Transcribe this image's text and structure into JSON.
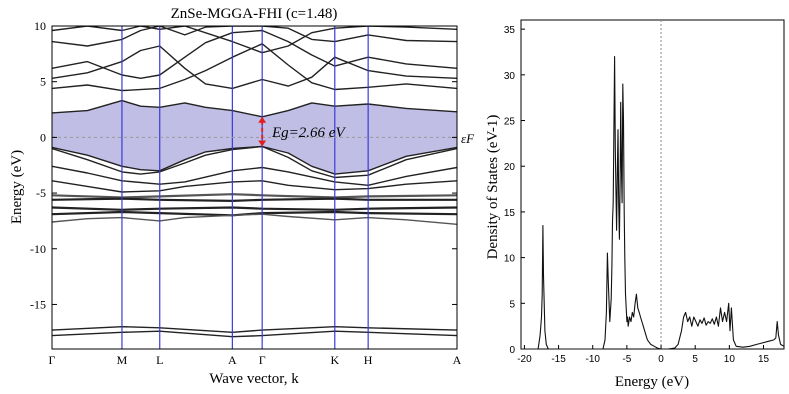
{
  "chart_data": [
    {
      "type": "line",
      "title": "ZnSe-MGGA-FHI (c=1.48)",
      "xlabel": "Wave vector, k",
      "ylabel": "Energy (eV)",
      "ylim": [
        -19,
        10
      ],
      "yticks": [
        "10",
        "5",
        "0",
        "-5",
        "-10",
        "-15"
      ],
      "kpoints": [
        "Γ",
        "M",
        "L",
        "A",
        "Γ",
        "K",
        "H",
        "A"
      ],
      "kpoint_positions": [
        0,
        0.237,
        0.365,
        0.611,
        0.712,
        0.958,
        1.071,
        1.372
      ],
      "gap_label": "Eg=2.66 eV",
      "fermi_label": "εF",
      "band_gap_eV": 2.66,
      "conduction_band_min": [
        [
          0,
          2.2
        ],
        [
          0.12,
          2.4
        ],
        [
          0.237,
          3.3
        ],
        [
          0.3,
          2.8
        ],
        [
          0.365,
          2.7
        ],
        [
          0.45,
          3.1
        ],
        [
          0.52,
          2.7
        ],
        [
          0.611,
          2.4
        ],
        [
          0.712,
          1.85
        ],
        [
          0.8,
          2.4
        ],
        [
          0.88,
          3.1
        ],
        [
          0.958,
          2.8
        ],
        [
          1.071,
          3.0
        ],
        [
          1.2,
          2.6
        ],
        [
          1.372,
          2.3
        ]
      ],
      "valence_band_max": [
        [
          0,
          -0.9
        ],
        [
          0.12,
          -1.6
        ],
        [
          0.237,
          -2.6
        ],
        [
          0.3,
          -2.9
        ],
        [
          0.365,
          -3.0
        ],
        [
          0.45,
          -2.0
        ],
        [
          0.52,
          -1.3
        ],
        [
          0.611,
          -1.0
        ],
        [
          0.712,
          -0.82
        ],
        [
          0.8,
          -1.4
        ],
        [
          0.88,
          -2.6
        ],
        [
          0.958,
          -3.3
        ],
        [
          1.071,
          -3.0
        ],
        [
          1.2,
          -1.7
        ],
        [
          1.372,
          -0.9
        ]
      ],
      "bands": [
        [
          [
            0,
            -0.9
          ],
          [
            0.12,
            -1.6
          ],
          [
            0.237,
            -2.6
          ],
          [
            0.3,
            -2.9
          ],
          [
            0.365,
            -3.0
          ],
          [
            0.45,
            -2.0
          ],
          [
            0.52,
            -1.3
          ],
          [
            0.611,
            -1.0
          ],
          [
            0.712,
            -0.82
          ],
          [
            0.8,
            -1.4
          ],
          [
            0.88,
            -2.6
          ],
          [
            0.958,
            -3.3
          ],
          [
            1.071,
            -3.0
          ],
          [
            1.2,
            -1.7
          ],
          [
            1.372,
            -0.9
          ]
        ],
        [
          [
            0,
            -1.0
          ],
          [
            0.12,
            -2.0
          ],
          [
            0.237,
            -3.1
          ],
          [
            0.3,
            -3.3
          ],
          [
            0.365,
            -3.1
          ],
          [
            0.45,
            -2.3
          ],
          [
            0.52,
            -1.6
          ],
          [
            0.611,
            -1.1
          ],
          [
            0.712,
            -0.82
          ],
          [
            0.8,
            -1.8
          ],
          [
            0.88,
            -3.0
          ],
          [
            0.958,
            -3.6
          ],
          [
            1.071,
            -3.4
          ],
          [
            1.2,
            -2.0
          ],
          [
            1.372,
            -1.0
          ]
        ],
        [
          [
            0,
            -2.6
          ],
          [
            0.12,
            -3.2
          ],
          [
            0.237,
            -3.9
          ],
          [
            0.365,
            -4.2
          ],
          [
            0.45,
            -4.0
          ],
          [
            0.611,
            -3.0
          ],
          [
            0.712,
            -2.7
          ],
          [
            0.8,
            -3.1
          ],
          [
            0.958,
            -4.0
          ],
          [
            1.071,
            -4.3
          ],
          [
            1.2,
            -3.5
          ],
          [
            1.372,
            -2.7
          ]
        ],
        [
          [
            0,
            -3.9
          ],
          [
            0.12,
            -4.4
          ],
          [
            0.237,
            -4.9
          ],
          [
            0.365,
            -4.8
          ],
          [
            0.45,
            -4.4
          ],
          [
            0.611,
            -4.0
          ],
          [
            0.712,
            -3.9
          ],
          [
            0.8,
            -4.3
          ],
          [
            0.958,
            -4.7
          ],
          [
            1.071,
            -4.6
          ],
          [
            1.2,
            -4.2
          ],
          [
            1.372,
            -3.9
          ]
        ],
        [
          [
            0,
            -5.2
          ],
          [
            0.237,
            -5.4
          ],
          [
            0.365,
            -5.3
          ],
          [
            0.611,
            -5.1
          ],
          [
            0.712,
            -5.2
          ],
          [
            0.958,
            -5.4
          ],
          [
            1.071,
            -5.3
          ],
          [
            1.372,
            -5.2
          ]
        ],
        [
          [
            0,
            -5.6
          ],
          [
            0.237,
            -5.5
          ],
          [
            0.365,
            -5.6
          ],
          [
            0.611,
            -5.7
          ],
          [
            0.712,
            -5.6
          ],
          [
            0.958,
            -5.5
          ],
          [
            1.071,
            -5.6
          ],
          [
            1.372,
            -5.6
          ]
        ],
        [
          [
            0,
            -6.3
          ],
          [
            0.237,
            -6.5
          ],
          [
            0.365,
            -6.4
          ],
          [
            0.611,
            -6.3
          ],
          [
            0.712,
            -6.4
          ],
          [
            0.958,
            -6.5
          ],
          [
            1.071,
            -6.4
          ],
          [
            1.372,
            -6.3
          ]
        ],
        [
          [
            0,
            -6.9
          ],
          [
            0.237,
            -6.7
          ],
          [
            0.365,
            -6.8
          ],
          [
            0.611,
            -7.0
          ],
          [
            0.712,
            -6.8
          ],
          [
            0.958,
            -6.7
          ],
          [
            1.071,
            -6.8
          ],
          [
            1.372,
            -6.9
          ]
        ],
        [
          [
            0,
            -7.6
          ],
          [
            0.12,
            -7.3
          ],
          [
            0.237,
            -7.2
          ],
          [
            0.365,
            -7.5
          ],
          [
            0.45,
            -7.2
          ],
          [
            0.611,
            -7.0
          ],
          [
            0.712,
            -6.9
          ],
          [
            0.8,
            -7.1
          ],
          [
            0.958,
            -7.4
          ],
          [
            1.071,
            -7.2
          ],
          [
            1.2,
            -7.4
          ],
          [
            1.372,
            -7.8
          ]
        ],
        [
          [
            0,
            -17.3
          ],
          [
            0.237,
            -17.0
          ],
          [
            0.365,
            -17.1
          ],
          [
            0.611,
            -17.5
          ],
          [
            0.712,
            -17.3
          ],
          [
            0.958,
            -17.0
          ],
          [
            1.071,
            -17.1
          ],
          [
            1.372,
            -17.3
          ]
        ],
        [
          [
            0,
            -17.8
          ],
          [
            0.237,
            -17.5
          ],
          [
            0.365,
            -17.4
          ],
          [
            0.611,
            -17.9
          ],
          [
            0.712,
            -17.8
          ],
          [
            0.958,
            -17.4
          ],
          [
            1.071,
            -17.5
          ],
          [
            1.372,
            -17.8
          ]
        ],
        [
          [
            0,
            2.2
          ],
          [
            0.12,
            2.4
          ],
          [
            0.237,
            3.3
          ],
          [
            0.3,
            2.8
          ],
          [
            0.365,
            2.7
          ],
          [
            0.45,
            3.1
          ],
          [
            0.52,
            2.7
          ],
          [
            0.611,
            2.4
          ],
          [
            0.712,
            1.85
          ],
          [
            0.8,
            2.4
          ],
          [
            0.88,
            3.1
          ],
          [
            0.958,
            2.8
          ],
          [
            1.071,
            3.0
          ],
          [
            1.2,
            2.6
          ],
          [
            1.372,
            2.3
          ]
        ],
        [
          [
            0,
            4.4
          ],
          [
            0.12,
            4.7
          ],
          [
            0.237,
            4.2
          ],
          [
            0.365,
            4.4
          ],
          [
            0.45,
            5.2
          ],
          [
            0.52,
            6.0
          ],
          [
            0.611,
            7.2
          ],
          [
            0.712,
            8.4
          ],
          [
            0.8,
            6.5
          ],
          [
            0.88,
            4.9
          ],
          [
            0.958,
            4.3
          ],
          [
            1.071,
            4.5
          ],
          [
            1.2,
            4.8
          ],
          [
            1.372,
            4.4
          ]
        ],
        [
          [
            0,
            5.3
          ],
          [
            0.12,
            5.8
          ],
          [
            0.237,
            6.8
          ],
          [
            0.3,
            7.8
          ],
          [
            0.365,
            8.2
          ],
          [
            0.45,
            6.2
          ],
          [
            0.52,
            4.8
          ],
          [
            0.611,
            4.4
          ],
          [
            0.712,
            5.2
          ],
          [
            0.8,
            4.6
          ],
          [
            0.88,
            5.4
          ],
          [
            0.958,
            7.2
          ],
          [
            1.071,
            6.0
          ],
          [
            1.2,
            5.5
          ],
          [
            1.372,
            5.3
          ]
        ],
        [
          [
            0,
            6.2
          ],
          [
            0.12,
            6.8
          ],
          [
            0.237,
            5.6
          ],
          [
            0.3,
            5.3
          ],
          [
            0.365,
            5.6
          ],
          [
            0.45,
            7.2
          ],
          [
            0.52,
            8.5
          ],
          [
            0.611,
            9.4
          ],
          [
            0.712,
            9.6
          ],
          [
            0.8,
            8.6
          ],
          [
            0.88,
            7.4
          ],
          [
            0.958,
            6.4
          ],
          [
            1.071,
            7.2
          ],
          [
            1.2,
            6.6
          ],
          [
            1.372,
            6.2
          ]
        ],
        [
          [
            0,
            8.6
          ],
          [
            0.12,
            8.2
          ],
          [
            0.237,
            8.8
          ],
          [
            0.3,
            9.6
          ],
          [
            0.365,
            10.0
          ],
          [
            0.45,
            9.2
          ],
          [
            0.52,
            9.9
          ],
          [
            0.611,
            10.0
          ],
          [
            0.712,
            10.0
          ],
          [
            0.8,
            9.8
          ],
          [
            0.88,
            8.8
          ],
          [
            0.958,
            8.6
          ],
          [
            1.071,
            9.2
          ],
          [
            1.2,
            8.7
          ],
          [
            1.372,
            8.6
          ]
        ],
        [
          [
            0,
            9.6
          ],
          [
            0.12,
            10.0
          ],
          [
            0.237,
            9.6
          ],
          [
            0.3,
            10.0
          ],
          [
            0.365,
            9.7
          ],
          [
            0.45,
            10.0
          ],
          [
            0.611,
            8.6
          ],
          [
            0.712,
            7.6
          ],
          [
            0.8,
            8.2
          ],
          [
            0.88,
            9.4
          ],
          [
            0.958,
            9.8
          ],
          [
            1.071,
            10.0
          ],
          [
            1.2,
            9.9
          ],
          [
            1.372,
            9.7
          ]
        ]
      ]
    },
    {
      "type": "line",
      "title": "",
      "xlabel": "Energy (eV)",
      "ylabel": "Density of States (eV-1)",
      "xlim": [
        -20.5,
        18
      ],
      "ylim": [
        0,
        36
      ],
      "xticks": [
        -20,
        -15,
        -10,
        -5,
        0,
        5,
        10,
        15
      ],
      "yticks": [
        0,
        5,
        10,
        15,
        20,
        25,
        30,
        35
      ],
      "fermi_level": 0,
      "x": [
        -20.5,
        -18,
        -17.7,
        -17.5,
        -17.4,
        -17.3,
        -17.2,
        -17.1,
        -17.0,
        -16.8,
        -16.5,
        -8.5,
        -8.2,
        -8.0,
        -7.85,
        -7.7,
        -7.5,
        -7.3,
        -7.2,
        -7.1,
        -7.0,
        -6.9,
        -6.8,
        -6.7,
        -6.6,
        -6.5,
        -6.4,
        -6.3,
        -6.2,
        -6.1,
        -6.0,
        -5.9,
        -5.8,
        -5.7,
        -5.6,
        -5.5,
        -5.4,
        -5.3,
        -5.2,
        -5.1,
        -5.0,
        -4.9,
        -4.8,
        -4.6,
        -4.4,
        -4.2,
        -4.0,
        -3.8,
        -3.6,
        -3.4,
        -3.2,
        -3.0,
        -2.8,
        -2.6,
        -2.4,
        -2.2,
        -2.0,
        -1.5,
        -1.0,
        -0.5,
        0,
        1.0,
        2.0,
        2.5,
        3.0,
        3.3,
        3.6,
        3.9,
        4.2,
        4.5,
        4.8,
        5.1,
        5.4,
        5.7,
        6.0,
        6.3,
        6.6,
        6.9,
        7.2,
        7.5,
        7.8,
        8.1,
        8.4,
        8.7,
        9.0,
        9.3,
        9.6,
        9.9,
        10.1,
        10.3,
        10.6,
        11.0,
        12.0,
        13.0,
        14.0,
        14.5,
        15.0,
        15.5,
        16.0,
        16.5,
        16.8,
        17.0,
        17.2,
        17.5,
        18.0
      ],
      "y": [
        0,
        0,
        1.5,
        3.5,
        6.0,
        13.5,
        8.0,
        5.0,
        2.0,
        0.5,
        0,
        0,
        1.0,
        4.0,
        10.5,
        7.0,
        3.0,
        5.5,
        9.0,
        14.0,
        16.0,
        24.0,
        32.0,
        22.0,
        17.0,
        13.0,
        19.0,
        24.0,
        16.0,
        12.0,
        18.0,
        27.0,
        20.0,
        16.0,
        29.0,
        25.0,
        15.0,
        10.0,
        6.0,
        4.5,
        3.0,
        3.5,
        2.5,
        3.5,
        3.0,
        4.0,
        3.5,
        5.0,
        6.0,
        4.5,
        4.0,
        3.5,
        3.0,
        2.5,
        2.0,
        1.5,
        1.0,
        0.5,
        0.3,
        0.1,
        0,
        0,
        0.1,
        0.5,
        2.0,
        3.5,
        4.0,
        3.0,
        3.5,
        2.5,
        3.5,
        3.0,
        2.5,
        3.2,
        2.8,
        3.4,
        2.6,
        3.0,
        2.8,
        3.3,
        2.7,
        3.5,
        2.5,
        4.5,
        3.0,
        4.0,
        3.0,
        5.0,
        2.0,
        4.5,
        1.0,
        0.3,
        0.2,
        0.3,
        0.5,
        0.6,
        0.7,
        0.8,
        0.9,
        1.0,
        1.2,
        3.0,
        1.5,
        0.5,
        0.3
      ]
    }
  ]
}
